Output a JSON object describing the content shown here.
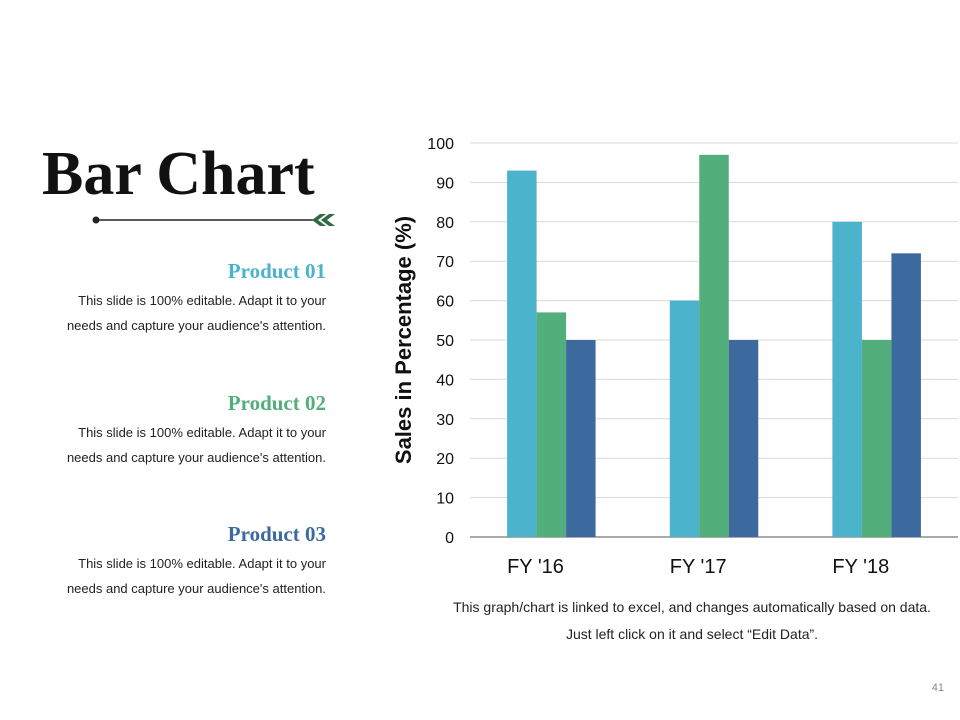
{
  "slide": {
    "title": "Bar Chart",
    "page_number": "41",
    "note": "This graph/chart is linked to excel, and changes automatically based on data. Just left click on it and select “Edit Data”.",
    "colors": {
      "product1": "#4BB3CC",
      "product2": "#52AE7A",
      "product3": "#3D6A9E"
    }
  },
  "products": [
    {
      "name": "Product 01",
      "description": "This slide is 100% editable. Adapt it to your needs and capture your audience's attention."
    },
    {
      "name": "Product 02",
      "description": "This slide is 100% editable. Adapt it to your needs and capture your audience's attention."
    },
    {
      "name": "Product 03",
      "description": "This slide is 100% editable. Adapt it to your needs and capture your audience's attention."
    }
  ],
  "chart_data": {
    "type": "bar",
    "title": "",
    "xlabel": "",
    "ylabel": "Sales in Percentage (%)",
    "categories": [
      "FY '16",
      "FY '17",
      "FY '18"
    ],
    "ylim": [
      0,
      100
    ],
    "yticks": [
      0,
      10,
      20,
      30,
      40,
      50,
      60,
      70,
      80,
      90,
      100
    ],
    "grid": true,
    "legend": "none",
    "series": [
      {
        "name": "Product 01",
        "color": "#4BB3CC",
        "values": [
          93,
          60,
          80
        ]
      },
      {
        "name": "Product 02",
        "color": "#52AE7A",
        "values": [
          57,
          97,
          50
        ]
      },
      {
        "name": "Product 03",
        "color": "#3D6A9E",
        "values": [
          50,
          50,
          72
        ]
      }
    ]
  }
}
